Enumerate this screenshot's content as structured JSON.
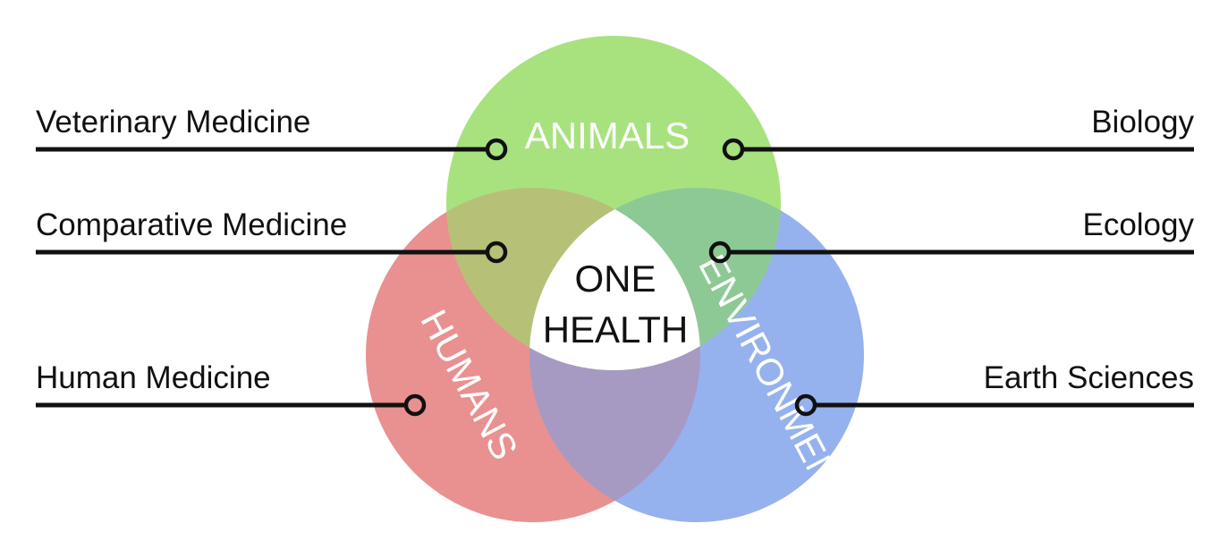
{
  "diagram": {
    "circles": {
      "animals": {
        "label": "ANIMALS",
        "color": "#8fdb5c"
      },
      "humans": {
        "label": "HUMANS",
        "color": "#e26f6f"
      },
      "environment": {
        "label": "ENVIRONMENT",
        "color": "#7097ea"
      }
    },
    "center": {
      "line1": "ONE",
      "line2": "HEALTH"
    },
    "left_labels": [
      "Veterinary Medicine",
      "Comparative Medicine",
      "Human Medicine"
    ],
    "right_labels": [
      "Biology",
      "Ecology",
      "Earth Sciences"
    ]
  }
}
